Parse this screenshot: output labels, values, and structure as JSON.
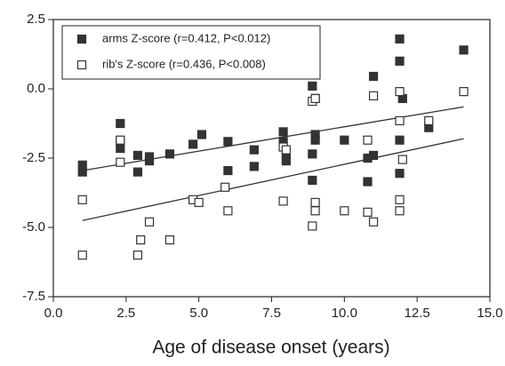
{
  "chart_data": {
    "type": "scatter",
    "x_label": "Age of disease onset (years)",
    "xlim": [
      0,
      15
    ],
    "xticks": [
      {
        "value": 0,
        "label": "0.0"
      },
      2.5,
      {
        "value": 5,
        "label": "5.0"
      },
      7.5,
      {
        "value": 10,
        "label": "10.0"
      },
      12.5,
      {
        "value": 15,
        "label": "15.0"
      }
    ],
    "ylim": [
      -7.5,
      2.5
    ],
    "yticks": [
      2.5,
      {
        "value": 0,
        "label": "0.0"
      },
      -2.5,
      {
        "value": -5,
        "label": "-5.0"
      },
      -7.5
    ],
    "legend_position": "upper left",
    "series": [
      {
        "name": "arms Z-score (r=0.412, P<0.012)",
        "color": "#333333",
        "marker": "filled",
        "x": [
          1.0,
          1.0,
          2.3,
          2.3,
          2.3,
          2.9,
          2.9,
          3.3,
          3.3,
          4.0,
          4.8,
          5.1,
          6.0,
          6.0,
          6.9,
          6.9,
          7.9,
          7.9,
          8.0,
          8.0,
          8.9,
          8.9,
          8.9,
          9.0,
          9.0,
          9.0,
          10.0,
          10.8,
          10.8,
          11.0,
          11.0,
          11.9,
          11.9,
          11.9,
          11.9,
          12.0,
          12.9,
          14.1
        ],
        "values": [
          -2.75,
          -3.0,
          -1.25,
          -1.9,
          -2.15,
          -3.0,
          -2.4,
          -2.45,
          -2.6,
          -2.35,
          -2.0,
          -1.65,
          -2.95,
          -1.9,
          -2.2,
          -2.8,
          -1.55,
          -1.9,
          -2.6,
          -2.4,
          0.1,
          -2.35,
          -3.3,
          -0.35,
          -1.65,
          -1.85,
          -1.85,
          -2.5,
          -3.35,
          0.45,
          -2.4,
          1.8,
          1.0,
          -1.85,
          -3.05,
          -0.35,
          -1.4,
          1.4
        ]
      },
      {
        "name": "rib's Z-score (r=0.436, P<0.008)",
        "color": "#333333",
        "marker": "open",
        "x": [
          1.0,
          1.0,
          2.3,
          2.3,
          2.9,
          3.0,
          3.3,
          4.0,
          4.8,
          5.0,
          5.9,
          6.0,
          7.9,
          7.9,
          8.0,
          8.9,
          8.9,
          9.0,
          9.0,
          9.0,
          10.0,
          10.8,
          10.8,
          11.0,
          11.0,
          11.9,
          11.9,
          11.9,
          11.9,
          12.0,
          12.9,
          14.1
        ],
        "values": [
          -4.0,
          -6.0,
          -1.85,
          -2.65,
          -6.0,
          -5.45,
          -4.8,
          -5.45,
          -4.0,
          -4.1,
          -3.55,
          -4.4,
          -4.05,
          -2.1,
          -2.2,
          -0.45,
          -4.95,
          -0.35,
          -4.1,
          -4.4,
          -4.4,
          -1.85,
          -4.45,
          -4.8,
          -0.25,
          -0.1,
          -1.15,
          -4.0,
          -4.4,
          -2.55,
          -1.15,
          -0.1
        ]
      }
    ],
    "trend_lines": [
      {
        "color": "#333333",
        "x": [
          1.0,
          14.1
        ],
        "values": [
          -2.95,
          -0.65
        ]
      },
      {
        "color": "#333333",
        "x": [
          1.0,
          14.1
        ],
        "values": [
          -4.75,
          -1.8
        ]
      }
    ]
  }
}
